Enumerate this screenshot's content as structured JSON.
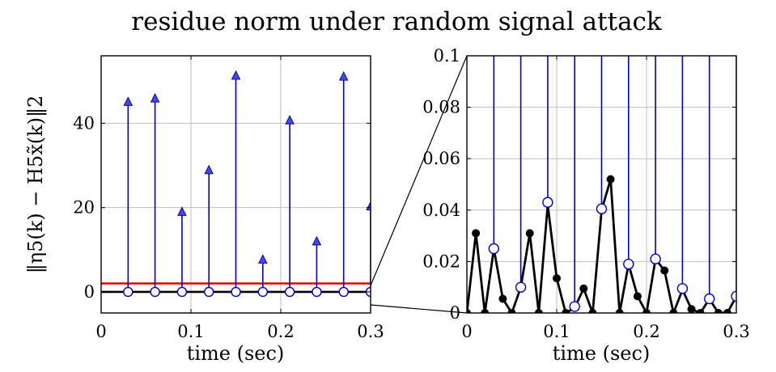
{
  "title": "residue norm under random signal attack",
  "colors": {
    "attack": "#0000cc",
    "threshold": "#e00000",
    "residue": "#000000",
    "marker_fill": "#ffffff",
    "triangle_fill": "#4a4ad6"
  },
  "chart_data": [
    {
      "type": "stem",
      "panel": "full view",
      "xlabel": "time (sec)",
      "ylabel": "‖η5(k) − H5x̃(k)‖2",
      "xlim": [
        0,
        0.3
      ],
      "ylim": [
        -5,
        56
      ],
      "xticks": [
        0,
        0.1,
        0.2,
        0.3
      ],
      "xtick_labels": [
        "0",
        "0.1",
        "0.2",
        "0.3"
      ],
      "yticks": [
        0,
        20,
        40
      ],
      "ytick_labels": [
        "0",
        "20",
        "40"
      ],
      "grid": true,
      "series": [
        {
          "role": "attacked residue (stems)",
          "x": [
            0.03,
            0.06,
            0.09,
            0.12,
            0.15,
            0.18,
            0.21,
            0.24,
            0.27,
            0.3
          ],
          "y": [
            45,
            45.8,
            18.9,
            28.8,
            51.2,
            7.6,
            40.6,
            11.9,
            51.0,
            20.2
          ]
        },
        {
          "role": "threshold",
          "y": 2.0
        },
        {
          "role": "nominal residue",
          "y": 0
        }
      ]
    },
    {
      "type": "line",
      "panel": "zoomed view",
      "xlabel": "time (sec)",
      "xlim": [
        0,
        0.3
      ],
      "ylim": [
        0,
        0.1
      ],
      "xticks": [
        0,
        0.1,
        0.2,
        0.3
      ],
      "xtick_labels": [
        "0",
        "0.1",
        "0.2",
        "0.3"
      ],
      "yticks": [
        0,
        0.02,
        0.04,
        0.06,
        0.08,
        0.1
      ],
      "ytick_labels": [
        "0",
        "0.02",
        "0.04",
        "0.06",
        "0.08",
        "0.1"
      ],
      "grid": true,
      "series": [
        {
          "role": "residue",
          "x": [
            0,
            0.01,
            0.02,
            0.03,
            0.04,
            0.05,
            0.06,
            0.07,
            0.08,
            0.09,
            0.1,
            0.11,
            0.12,
            0.13,
            0.14,
            0.15,
            0.16,
            0.17,
            0.18,
            0.19,
            0.2,
            0.21,
            0.22,
            0.23,
            0.24,
            0.25,
            0.26,
            0.27,
            0.28,
            0.29,
            0.3
          ],
          "y": [
            0,
            0.031,
            0,
            0.025,
            0.0055,
            0,
            0.01,
            0.031,
            0,
            0.042,
            0.0135,
            0,
            0.002,
            0.0095,
            0,
            0.04,
            0.052,
            0,
            0.019,
            0.0065,
            0,
            0.021,
            0.0165,
            0,
            0.009,
            0.0015,
            0,
            0.0055,
            0,
            0,
            0.0065
          ]
        },
        {
          "role": "attack stems",
          "x": [
            0.03,
            0.06,
            0.09,
            0.12,
            0.15,
            0.18,
            0.21,
            0.24,
            0.27,
            0.3
          ],
          "y_base": [
            0.025,
            0.01,
            0.043,
            0.0025,
            0.0405,
            0.019,
            0.021,
            0.0095,
            0.0055,
            0.0065
          ]
        }
      ]
    }
  ]
}
